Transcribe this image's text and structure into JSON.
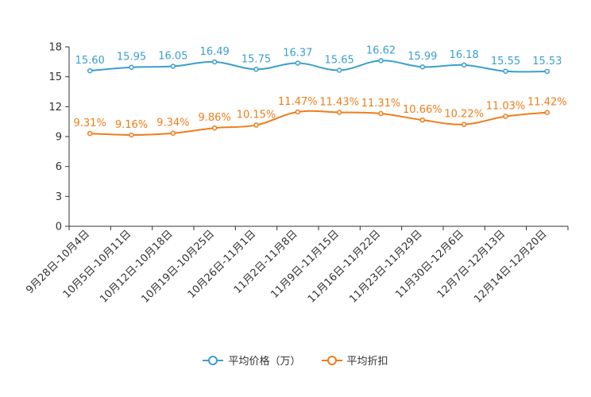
{
  "chart_data": {
    "type": "line",
    "title": "",
    "xlabel": "",
    "ylabel": "",
    "ylim": [
      0,
      18
    ],
    "yticks": [
      0,
      3,
      6,
      9,
      12,
      15,
      18
    ],
    "grid": false,
    "legend_position": "bottom",
    "categories": [
      "9月28日-10月4日",
      "10月5日-10月11日",
      "10月12日-10月18日",
      "10月19日-10月25日",
      "10月26日-11月1日",
      "11月2日-11月8日",
      "11月9日-11月15日",
      "11月16日-11月22日",
      "11月23日-11月29日",
      "11月30日-12月6日",
      "12月7日-12月13日",
      "12月14日-12月20日"
    ],
    "series": [
      {
        "name": "平均价格（万）",
        "color": "#3a9fd0",
        "values": [
          15.6,
          15.95,
          16.05,
          16.49,
          15.75,
          16.37,
          15.65,
          16.62,
          15.99,
          16.18,
          15.55,
          15.53
        ],
        "labels": [
          "15.60",
          "15.95",
          "16.05",
          "16.49",
          "15.75",
          "16.37",
          "15.65",
          "16.62",
          "15.99",
          "16.18",
          "15.55",
          "15.53"
        ]
      },
      {
        "name": "平均折扣",
        "color": "#f07c19",
        "values": [
          9.31,
          9.16,
          9.34,
          9.86,
          10.15,
          11.47,
          11.43,
          11.31,
          10.66,
          10.22,
          11.03,
          11.42
        ],
        "labels": [
          "9.31%",
          "9.16%",
          "9.34%",
          "9.86%",
          "10.15%",
          "11.47%",
          "11.43%",
          "11.31%",
          "10.66%",
          "10.22%",
          "11.03%",
          "11.42%"
        ]
      }
    ]
  }
}
